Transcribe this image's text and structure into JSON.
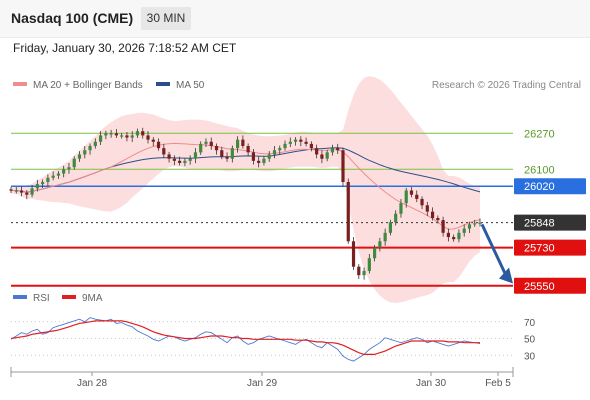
{
  "header": {
    "title": "Nasdaq 100 (CME)",
    "timeframe_label": "30 MIN",
    "datetime": "Friday, January 30, 2026 7:18:52 AM CET"
  },
  "legend": {
    "ma20_label": "MA 20 + Bollinger Bands",
    "ma20_color": "#f08c8c",
    "ma50_label": "MA 50",
    "ma50_color": "#2c4f8c",
    "credit": "Research © 2026 Trading Central"
  },
  "rsi_legend": {
    "rsi_label": "RSI",
    "rsi_color": "#4a78d0",
    "ma_label": "9MA",
    "ma_color": "#e02020"
  },
  "chart_data": [
    {
      "type": "candlestick",
      "title": "Nasdaq 100 (CME)",
      "x_ticks": [
        "Jan 28",
        "Jan 29",
        "Jan 30",
        "Feb 5"
      ],
      "ylim": [
        25530,
        26380
      ],
      "levels": [
        {
          "value": 26270,
          "label": "26270",
          "color": "#7ac142",
          "style": "thin"
        },
        {
          "value": 26100,
          "label": "26100",
          "color": "#7ac142",
          "style": "thin"
        },
        {
          "value": 26020,
          "label": "26020",
          "color": "#2a6fe0",
          "style": "pivot"
        },
        {
          "value": 25848,
          "label": "25848",
          "color": "#333333",
          "style": "last"
        },
        {
          "value": 25730,
          "label": "25730",
          "color": "#e01010",
          "style": "support"
        },
        {
          "value": 25550,
          "label": "25550",
          "color": "#e01010",
          "style": "support"
        }
      ],
      "arrow": {
        "from": 25840,
        "to": 25570,
        "color": "#2a5aa0"
      },
      "close_series": [
        26000,
        26000,
        25990,
        25980,
        26010,
        26030,
        26040,
        26060,
        26070,
        26080,
        26100,
        26110,
        26150,
        26170,
        26190,
        26210,
        26230,
        26260,
        26270,
        26270,
        26260,
        26260,
        26250,
        26260,
        26280,
        26260,
        26240,
        26230,
        26200,
        26170,
        26150,
        26140,
        26130,
        26140,
        26150,
        26180,
        26220,
        26230,
        26210,
        26190,
        26160,
        26150,
        26200,
        26240,
        26210,
        26180,
        26140,
        26130,
        26150,
        26170,
        26190,
        26200,
        26220,
        26230,
        26240,
        26230,
        26220,
        26200,
        26170,
        26150,
        26180,
        26200,
        26190,
        26040,
        25760,
        25640,
        25600,
        25620,
        25680,
        25730,
        25760,
        25800,
        25850,
        25890,
        25940,
        26000,
        25980,
        25960,
        25930,
        25900,
        25870,
        25860,
        25800,
        25780,
        25770,
        25800,
        25820,
        25840,
        25845,
        25848
      ]
    },
    {
      "type": "line",
      "title": "RSI",
      "yticks": [
        30,
        50,
        70
      ],
      "ylim": [
        10,
        90
      ],
      "series": [
        {
          "name": "RSI",
          "values": [
            49,
            53,
            57,
            55,
            59,
            61,
            55,
            57,
            63,
            65,
            67,
            69,
            71,
            73,
            70,
            75,
            73,
            72,
            71,
            73,
            68,
            69,
            66,
            64,
            59,
            56,
            53,
            49,
            47,
            50,
            53,
            52,
            49,
            47,
            49,
            51,
            55,
            58,
            57,
            53,
            49,
            45,
            51,
            53,
            47,
            43,
            45,
            49,
            51,
            53,
            51,
            49,
            47,
            45,
            43,
            47,
            49,
            45,
            41,
            39,
            45,
            41,
            37,
            29,
            25,
            23,
            27,
            31,
            37,
            41,
            45,
            51,
            49,
            47,
            45,
            47,
            49,
            51,
            49,
            45,
            47,
            45,
            43,
            41,
            43,
            45,
            47,
            46,
            45,
            44
          ]
        },
        {
          "name": "9MA",
          "values": [
            50,
            51,
            52,
            53,
            55,
            56,
            57,
            58,
            59,
            60,
            62,
            64,
            66,
            68,
            69,
            70,
            71,
            71,
            71,
            71,
            71,
            71,
            70,
            68,
            66,
            64,
            61,
            58,
            56,
            54,
            53,
            52,
            51,
            50,
            50,
            50,
            51,
            52,
            53,
            53,
            53,
            52,
            51,
            51,
            50,
            50,
            49,
            49,
            49,
            49,
            49,
            49,
            49,
            49,
            48,
            48,
            48,
            47,
            46,
            46,
            45,
            45,
            44,
            42,
            39,
            36,
            33,
            31,
            31,
            31,
            33,
            35,
            38,
            41,
            43,
            45,
            47,
            47,
            47,
            47,
            47,
            47,
            47,
            46,
            46,
            46,
            45,
            45,
            45,
            45
          ]
        }
      ]
    }
  ]
}
